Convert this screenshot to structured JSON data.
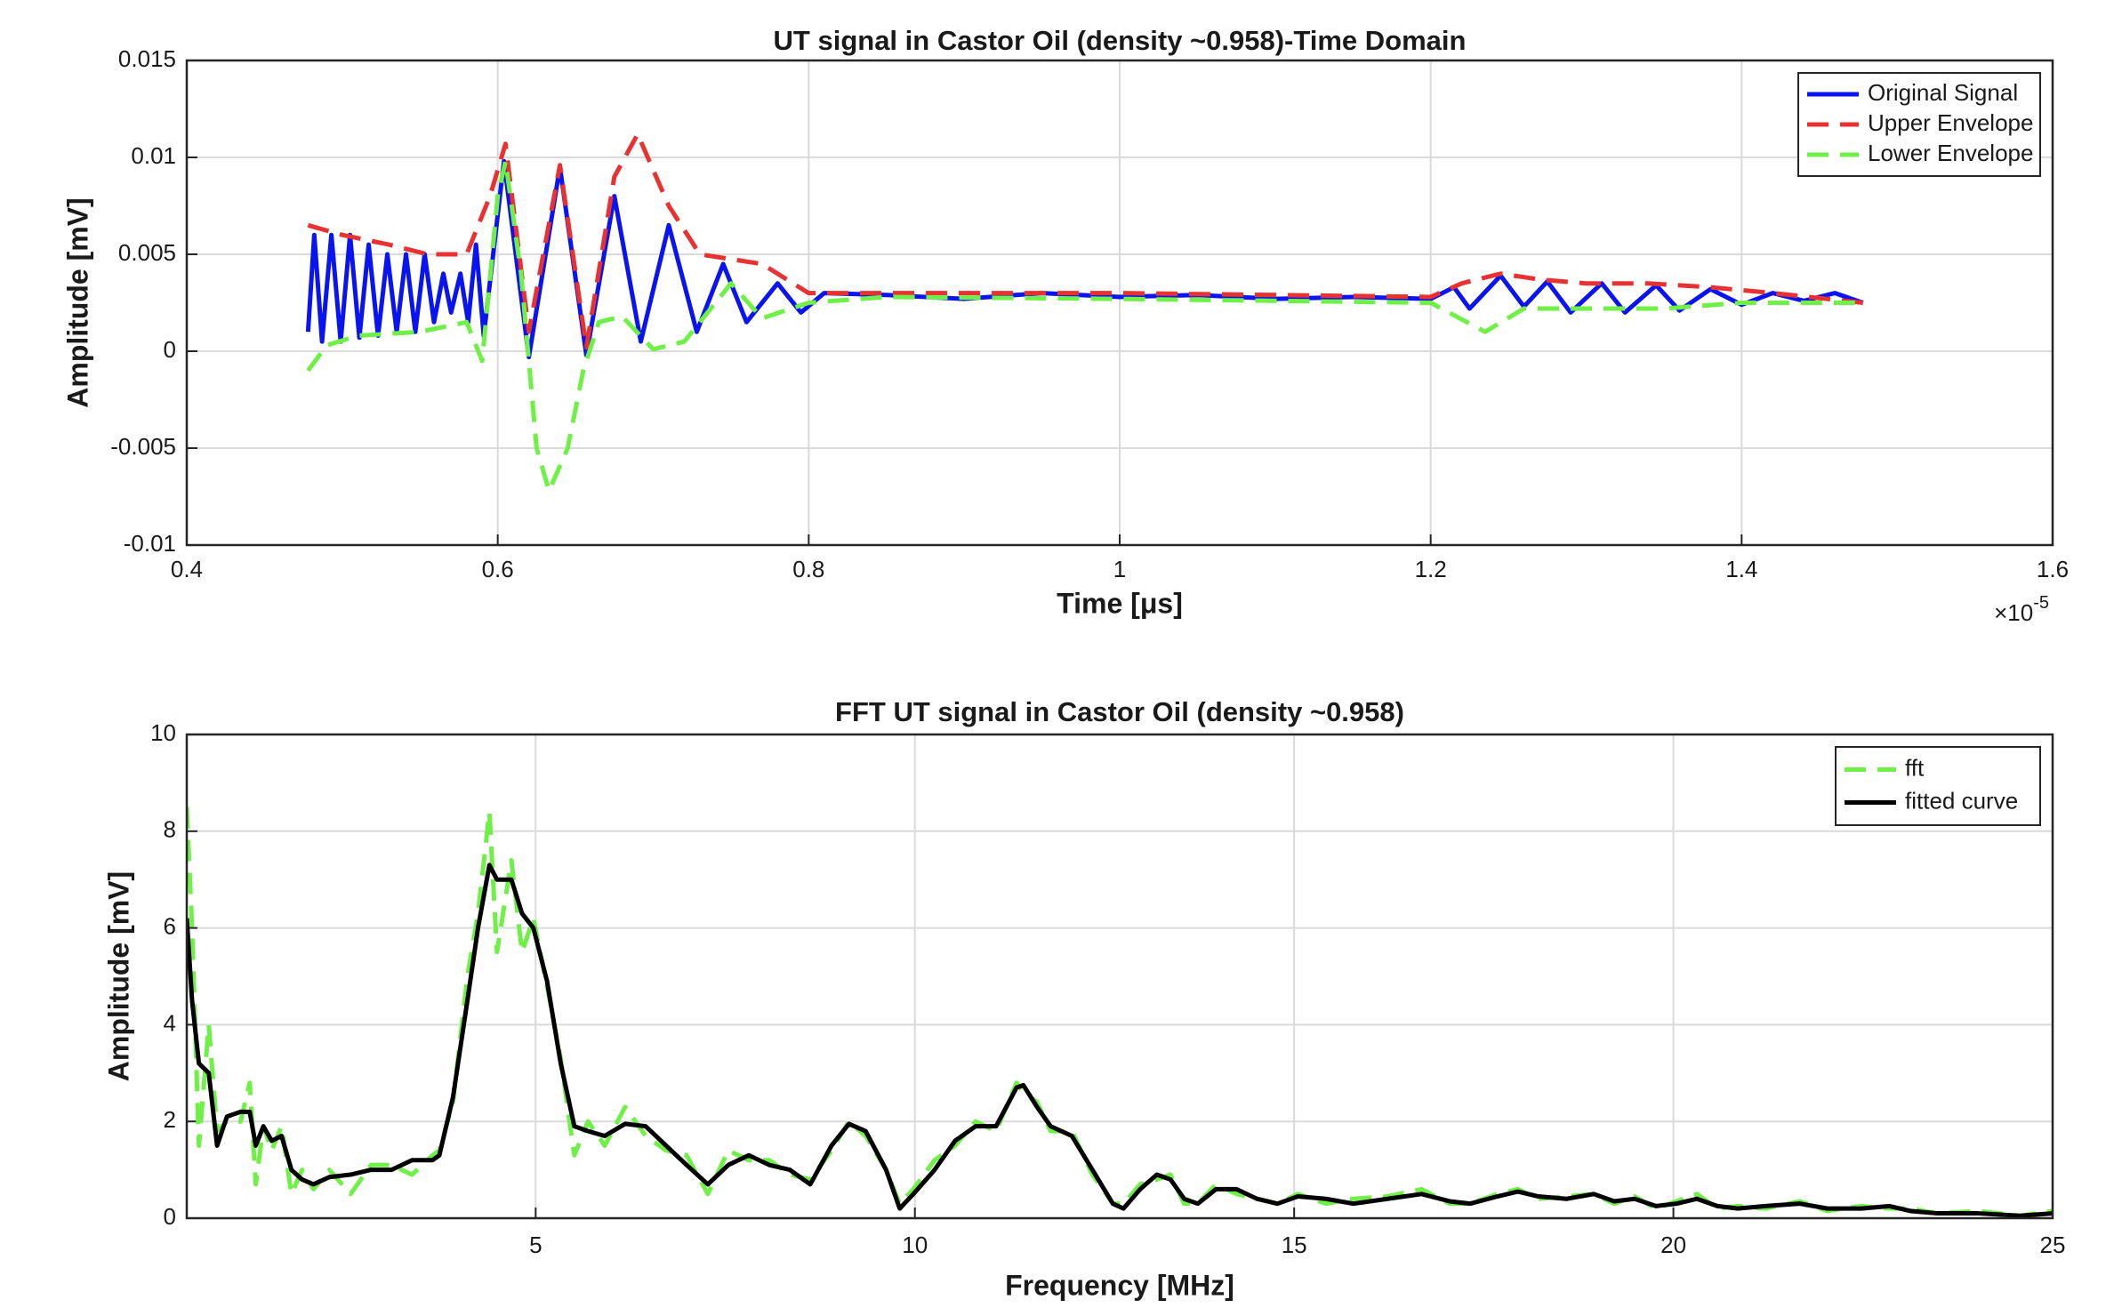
{
  "chart_data": [
    {
      "type": "line",
      "title": "UT signal in Castor Oil (density ~0.958)-Time Domain",
      "x_label": "Time [μs]",
      "y_label": "Amplitude [mV]",
      "x_multiplier": "×10",
      "x_multiplier_exponent": "-5",
      "xlim": [
        4e-06,
        1.6e-05
      ],
      "xticks": [
        {
          "value": 4e-06,
          "label": "0.4"
        },
        {
          "value": 6e-06,
          "label": "0.6"
        },
        {
          "value": 8e-06,
          "label": "0.8"
        },
        {
          "value": 1e-05,
          "label": "1"
        },
        {
          "value": 1.2e-05,
          "label": "1.2"
        },
        {
          "value": 1.4e-05,
          "label": "1.4"
        },
        {
          "value": 1.6e-05,
          "label": "1.6"
        }
      ],
      "ylim": [
        -0.01,
        0.015
      ],
      "yticks": [
        -0.01,
        -0.005,
        0,
        0.005,
        0.01,
        0.015
      ],
      "grid": true,
      "legend": "upper right",
      "series": [
        {
          "name": "Original Signal",
          "color": "#0a14f0",
          "dashed": false,
          "x": [
            4.78e-06,
            4.82e-06,
            4.87e-06,
            4.93e-06,
            4.99e-06,
            5.05e-06,
            5.11e-06,
            5.17e-06,
            5.23e-06,
            5.29e-06,
            5.35e-06,
            5.41e-06,
            5.47e-06,
            5.53e-06,
            5.59e-06,
            5.65e-06,
            5.7e-06,
            5.76e-06,
            5.81e-06,
            5.86e-06,
            5.91e-06,
            6.04e-06,
            6.2e-06,
            6.4e-06,
            6.57e-06,
            6.75e-06,
            6.92e-06,
            7.1e-06,
            7.28e-06,
            7.45e-06,
            7.6e-06,
            7.8e-06,
            7.95e-06,
            8.1e-06,
            8.5e-06,
            9e-06,
            9.5e-06,
            1e-05,
            1.05e-05,
            1.1e-05,
            1.15e-05,
            1.2e-05,
            1.215e-05,
            1.225e-05,
            1.245e-05,
            1.26e-05,
            1.275e-05,
            1.29e-05,
            1.31e-05,
            1.325e-05,
            1.345e-05,
            1.36e-05,
            1.38e-05,
            1.4e-05,
            1.42e-05,
            1.44e-05,
            1.46e-05,
            1.478e-05
          ],
          "values": [
            0.001,
            0.006,
            0.0005,
            0.006,
            0.0005,
            0.006,
            0.0007,
            0.0055,
            0.0008,
            0.005,
            0.001,
            0.005,
            0.001,
            0.005,
            0.0015,
            0.004,
            0.002,
            0.004,
            0.0015,
            0.0055,
            0.0008,
            0.0098,
            -0.0003,
            0.0095,
            -0.0002,
            0.008,
            0.0005,
            0.0065,
            0.001,
            0.0045,
            0.0015,
            0.0035,
            0.002,
            0.003,
            0.0029,
            0.0027,
            0.003,
            0.0028,
            0.0029,
            0.0027,
            0.0028,
            0.0027,
            0.0033,
            0.0022,
            0.0039,
            0.0023,
            0.0036,
            0.002,
            0.0035,
            0.002,
            0.0034,
            0.0021,
            0.0032,
            0.0024,
            0.003,
            0.0026,
            0.003,
            0.0025
          ]
        },
        {
          "name": "Upper Envelope",
          "color": "#e83232",
          "dashed": true,
          "x": [
            4.78e-06,
            5e-06,
            5.3e-06,
            5.55e-06,
            5.8e-06,
            5.95e-06,
            6.05e-06,
            6.2e-06,
            6.4e-06,
            6.57e-06,
            6.75e-06,
            6.9e-06,
            7.1e-06,
            7.3e-06,
            7.7e-06,
            8e-06,
            8.5e-06,
            1e-05,
            1.2e-05,
            1.22e-05,
            1.245e-05,
            1.27e-05,
            1.3e-05,
            1.34e-05,
            1.38e-05,
            1.42e-05,
            1.478e-05
          ],
          "values": [
            0.0065,
            0.006,
            0.0055,
            0.005,
            0.005,
            0.008,
            0.0107,
            0.001,
            0.0096,
            0.0002,
            0.009,
            0.0112,
            0.0075,
            0.005,
            0.0045,
            0.003,
            0.003,
            0.003,
            0.0028,
            0.0035,
            0.004,
            0.0037,
            0.0035,
            0.0035,
            0.0033,
            0.003,
            0.0025
          ]
        },
        {
          "name": "Lower Envelope",
          "color": "#6ef046",
          "dashed": true,
          "x": [
            4.78e-06,
            4.9e-06,
            5.1e-06,
            5.5e-06,
            5.8e-06,
            5.9e-06,
            6e-06,
            6.05e-06,
            6.15e-06,
            6.25e-06,
            6.33e-06,
            6.45e-06,
            6.55e-06,
            6.65e-06,
            6.8e-06,
            7e-06,
            7.2e-06,
            7.5e-06,
            7.7e-06,
            8e-06,
            8.5e-06,
            1e-05,
            1.2e-05,
            1.235e-05,
            1.26e-05,
            1.3e-05,
            1.35e-05,
            1.4e-05,
            1.478e-05
          ],
          "values": [
            -0.001,
            0.0003,
            0.0008,
            0.001,
            0.0015,
            -0.0005,
            0.008,
            0.0098,
            0.004,
            -0.005,
            -0.0072,
            -0.005,
            -0.001,
            0.0015,
            0.0018,
            0.0001,
            0.0005,
            0.0035,
            0.0017,
            0.0025,
            0.0028,
            0.0027,
            0.0025,
            0.001,
            0.0022,
            0.0022,
            0.0022,
            0.0025,
            0.0025
          ]
        }
      ]
    },
    {
      "type": "line",
      "title": "FFT UT signal in Castor Oil (density ~0.958)",
      "x_label": "Frequency [MHz]",
      "y_label": "Amplitude [mV]",
      "xlim": [
        0.4,
        25
      ],
      "xticks": [
        5,
        10,
        15,
        20,
        25
      ],
      "ylim": [
        0,
        10
      ],
      "yticks": [
        0,
        2,
        4,
        6,
        8,
        10
      ],
      "grid": true,
      "legend": "upper right",
      "x": [
        0.4,
        0.47,
        0.56,
        0.69,
        0.8,
        0.93,
        1.11,
        1.23,
        1.31,
        1.41,
        1.52,
        1.65,
        1.78,
        1.92,
        2.07,
        2.28,
        2.56,
        2.83,
        3.1,
        3.37,
        3.64,
        3.73,
        3.91,
        4.1,
        4.24,
        4.39,
        4.49,
        4.68,
        4.82,
        4.97,
        5.15,
        5.33,
        5.51,
        5.69,
        5.91,
        6.18,
        6.45,
        6.72,
        6.99,
        7.27,
        7.54,
        7.81,
        8.08,
        8.35,
        8.62,
        8.9,
        9.13,
        9.35,
        9.62,
        9.8,
        9.98,
        10.26,
        10.53,
        10.8,
        11.07,
        11.34,
        11.43,
        11.61,
        11.79,
        12.07,
        12.34,
        12.61,
        12.75,
        12.97,
        13.19,
        13.37,
        13.55,
        13.73,
        13.97,
        14.24,
        14.51,
        14.78,
        15.05,
        15.42,
        15.78,
        16.23,
        16.68,
        17.05,
        17.32,
        17.68,
        17.95,
        18.22,
        18.59,
        18.95,
        19.22,
        19.49,
        19.77,
        20.04,
        20.31,
        20.58,
        20.85,
        21.21,
        21.67,
        22.03,
        22.48,
        22.85,
        23.12,
        23.48,
        24.02,
        24.57,
        25
      ],
      "series": [
        {
          "name": "fft",
          "color": "#6ef046",
          "dashed": true,
          "values": [
            8.5,
            6.0,
            1.5,
            4.0,
            1.8,
            2.0,
            2.0,
            2.8,
            0.7,
            1.9,
            1.4,
            1.9,
            0.5,
            1.0,
            0.6,
            1.0,
            0.5,
            1.1,
            1.1,
            0.9,
            1.3,
            1.4,
            2.4,
            5.0,
            6.3,
            8.4,
            5.5,
            7.4,
            5.5,
            6.2,
            4.8,
            3.3,
            1.3,
            2.0,
            1.5,
            2.3,
            1.7,
            1.4,
            1.3,
            0.5,
            1.4,
            1.2,
            1.2,
            0.9,
            0.8,
            1.4,
            2.0,
            1.7,
            1.0,
            0.3,
            0.6,
            1.2,
            1.5,
            2.0,
            1.8,
            2.8,
            2.6,
            2.4,
            1.8,
            1.8,
            0.9,
            0.3,
            0.3,
            0.7,
            0.8,
            0.9,
            0.3,
            0.3,
            0.7,
            0.5,
            0.4,
            0.3,
            0.5,
            0.3,
            0.4,
            0.45,
            0.6,
            0.3,
            0.3,
            0.5,
            0.6,
            0.4,
            0.45,
            0.5,
            0.3,
            0.45,
            0.2,
            0.35,
            0.5,
            0.2,
            0.25,
            0.2,
            0.35,
            0.15,
            0.25,
            0.2,
            0.2,
            0.1,
            0.15,
            0.05,
            0.15
          ]
        },
        {
          "name": "fitted curve",
          "color": "#000000",
          "dashed": false,
          "values": [
            6.2,
            4.5,
            3.2,
            3.0,
            1.5,
            2.1,
            2.2,
            2.2,
            1.5,
            1.9,
            1.6,
            1.7,
            1.0,
            0.8,
            0.7,
            0.85,
            0.9,
            1.0,
            1.0,
            1.2,
            1.2,
            1.3,
            2.5,
            4.5,
            6.0,
            7.3,
            7.0,
            7.0,
            6.3,
            6.0,
            4.9,
            3.2,
            1.9,
            1.8,
            1.7,
            1.95,
            1.9,
            1.5,
            1.1,
            0.7,
            1.1,
            1.3,
            1.1,
            1.0,
            0.7,
            1.5,
            1.95,
            1.8,
            1.0,
            0.2,
            0.5,
            1.0,
            1.6,
            1.9,
            1.9,
            2.7,
            2.75,
            2.3,
            1.9,
            1.7,
            1.0,
            0.3,
            0.2,
            0.6,
            0.9,
            0.8,
            0.4,
            0.3,
            0.6,
            0.6,
            0.4,
            0.3,
            0.45,
            0.4,
            0.3,
            0.4,
            0.5,
            0.35,
            0.3,
            0.45,
            0.55,
            0.45,
            0.4,
            0.5,
            0.35,
            0.4,
            0.25,
            0.3,
            0.4,
            0.25,
            0.2,
            0.25,
            0.3,
            0.2,
            0.2,
            0.25,
            0.15,
            0.1,
            0.1,
            0.05,
            0.1
          ]
        }
      ]
    }
  ]
}
